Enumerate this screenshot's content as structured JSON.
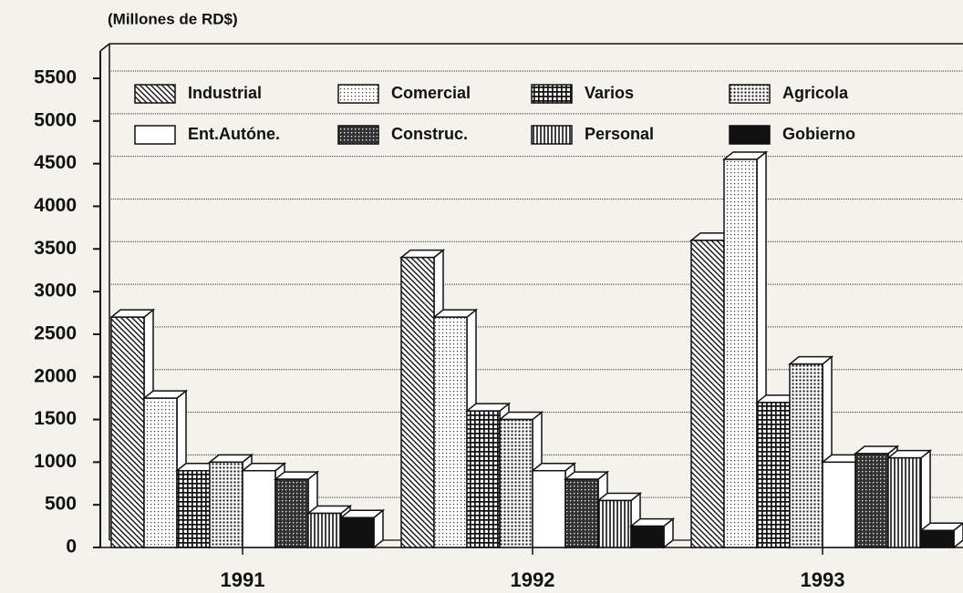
{
  "chart_data": {
    "type": "bar",
    "title": "(Millones de RD$)",
    "categories": [
      "1991",
      "1992",
      "1993"
    ],
    "series": [
      {
        "name": "Industrial",
        "color": "#111111",
        "pattern": "diagonal",
        "values": [
          2700,
          3400,
          3600
        ]
      },
      {
        "name": "Comercial",
        "color": "#111111",
        "pattern": "dots",
        "values": [
          1750,
          2700,
          4550
        ]
      },
      {
        "name": "Varios",
        "color": "#111111",
        "pattern": "grid",
        "values": [
          900,
          1600,
          1700
        ]
      },
      {
        "name": "Agricola",
        "color": "#111111",
        "pattern": "dense-dots",
        "values": [
          1000,
          1500,
          2150
        ]
      },
      {
        "name": "Ent.Autóne.",
        "color": "#ffffff",
        "pattern": "none",
        "values": [
          900,
          900,
          1000
        ]
      },
      {
        "name": "Construc.",
        "color": "#111111",
        "pattern": "crosshatch",
        "values": [
          800,
          800,
          1100
        ]
      },
      {
        "name": "Personal",
        "color": "#111111",
        "pattern": "vertical",
        "values": [
          400,
          550,
          1050
        ]
      },
      {
        "name": "Gobierno",
        "color": "#111111",
        "pattern": "solid",
        "values": [
          350,
          250,
          200
        ]
      }
    ],
    "ylim": [
      0,
      5500
    ],
    "yticks": [
      0,
      500,
      1000,
      1500,
      2000,
      2500,
      3000,
      3500,
      4000,
      4500,
      5000,
      5500
    ],
    "grid": true
  }
}
